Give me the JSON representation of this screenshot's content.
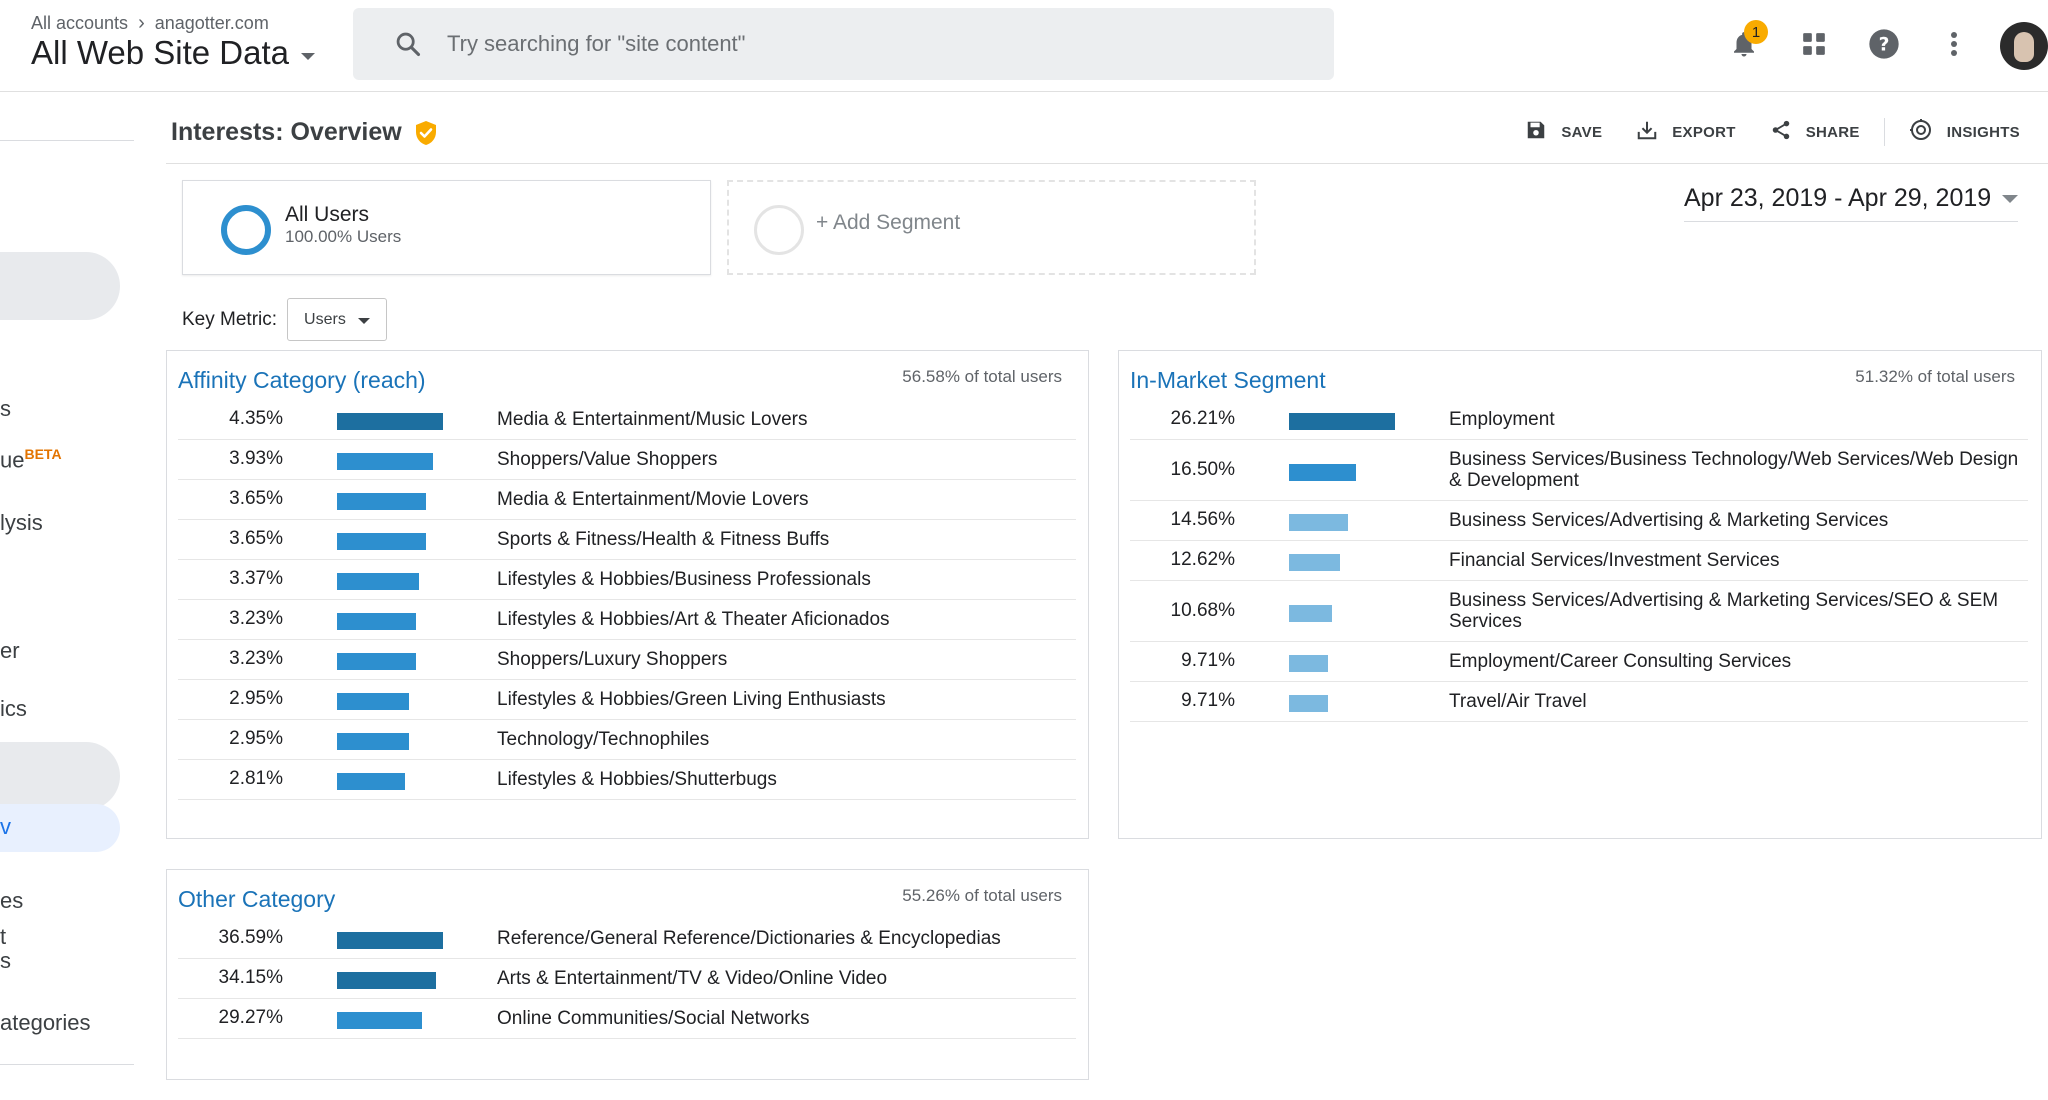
{
  "header": {
    "breadcrumb_root": "All accounts",
    "breadcrumb_account": "anagotter.com",
    "property": "All Web Site Data",
    "search_placeholder": "Try searching for \"site content\"",
    "notification_count": "1",
    "icons": [
      "search-icon",
      "bell-icon",
      "apps-grid-icon",
      "help-icon",
      "more-vert-icon"
    ]
  },
  "leftnav": {
    "items": [
      {
        "text": "s"
      },
      {
        "text": "ue",
        "badge": "BETA"
      },
      {
        "text": "lysis"
      },
      {
        "text": "er"
      },
      {
        "text": "ics"
      },
      {
        "text": "v"
      },
      {
        "text": "es"
      },
      {
        "text": "t"
      },
      {
        "text": "s"
      },
      {
        "text": "ategories"
      }
    ]
  },
  "page": {
    "title": "Interests: Overview",
    "actions": [
      {
        "label": "SAVE",
        "icon": "save-icon"
      },
      {
        "label": "EXPORT",
        "icon": "export-icon"
      },
      {
        "label": "SHARE",
        "icon": "share-icon"
      },
      {
        "label": "INSIGHTS",
        "icon": "insights-icon"
      }
    ]
  },
  "segments": {
    "all_users_name": "All Users",
    "all_users_sub": "100.00% Users",
    "add_segment": "+ Add Segment"
  },
  "date_range": "Apr 23, 2019 - Apr 29, 2019",
  "key_metric": {
    "label": "Key Metric:",
    "value": "Users"
  },
  "colors": {
    "bar_dark": "#1d6fa0",
    "bar_mid": "#2d8fcf",
    "bar_light": "#7cb9e0",
    "title_blue": "#1a73b8"
  },
  "panels": {
    "affinity": {
      "title": "Affinity Category (reach)",
      "total": "56.58% of total users",
      "rows": [
        {
          "pct": "4.35%",
          "value": 4.35,
          "label": "Media & Entertainment/Music Lovers"
        },
        {
          "pct": "3.93%",
          "value": 3.93,
          "label": "Shoppers/Value Shoppers"
        },
        {
          "pct": "3.65%",
          "value": 3.65,
          "label": "Media & Entertainment/Movie Lovers"
        },
        {
          "pct": "3.65%",
          "value": 3.65,
          "label": "Sports & Fitness/Health & Fitness Buffs"
        },
        {
          "pct": "3.37%",
          "value": 3.37,
          "label": "Lifestyles & Hobbies/Business Professionals"
        },
        {
          "pct": "3.23%",
          "value": 3.23,
          "label": "Lifestyles & Hobbies/Art & Theater Aficionados"
        },
        {
          "pct": "3.23%",
          "value": 3.23,
          "label": "Shoppers/Luxury Shoppers"
        },
        {
          "pct": "2.95%",
          "value": 2.95,
          "label": "Lifestyles & Hobbies/Green Living Enthusiasts"
        },
        {
          "pct": "2.95%",
          "value": 2.95,
          "label": "Technology/Technophiles"
        },
        {
          "pct": "2.81%",
          "value": 2.81,
          "label": "Lifestyles & Hobbies/Shutterbugs"
        }
      ]
    },
    "inmarket": {
      "title": "In-Market Segment",
      "total": "51.32% of total users",
      "rows": [
        {
          "pct": "26.21%",
          "value": 26.21,
          "label": "Employment"
        },
        {
          "pct": "16.50%",
          "value": 16.5,
          "label": "Business Services/Business Technology/Web Services/Web Design & Development"
        },
        {
          "pct": "14.56%",
          "value": 14.56,
          "label": "Business Services/Advertising & Marketing Services"
        },
        {
          "pct": "12.62%",
          "value": 12.62,
          "label": "Financial Services/Investment Services"
        },
        {
          "pct": "10.68%",
          "value": 10.68,
          "label": "Business Services/Advertising & Marketing Services/SEO & SEM Services"
        },
        {
          "pct": "9.71%",
          "value": 9.71,
          "label": "Employment/Career Consulting Services"
        },
        {
          "pct": "9.71%",
          "value": 9.71,
          "label": "Travel/Air Travel"
        }
      ]
    },
    "other": {
      "title": "Other Category",
      "total": "55.26% of total users",
      "rows": [
        {
          "pct": "36.59%",
          "value": 36.59,
          "label": "Reference/General Reference/Dictionaries & Encyclopedias"
        },
        {
          "pct": "34.15%",
          "value": 34.15,
          "label": "Arts & Entertainment/TV & Video/Online Video"
        },
        {
          "pct": "29.27%",
          "value": 29.27,
          "label": "Online Communities/Social Networks"
        }
      ]
    }
  }
}
